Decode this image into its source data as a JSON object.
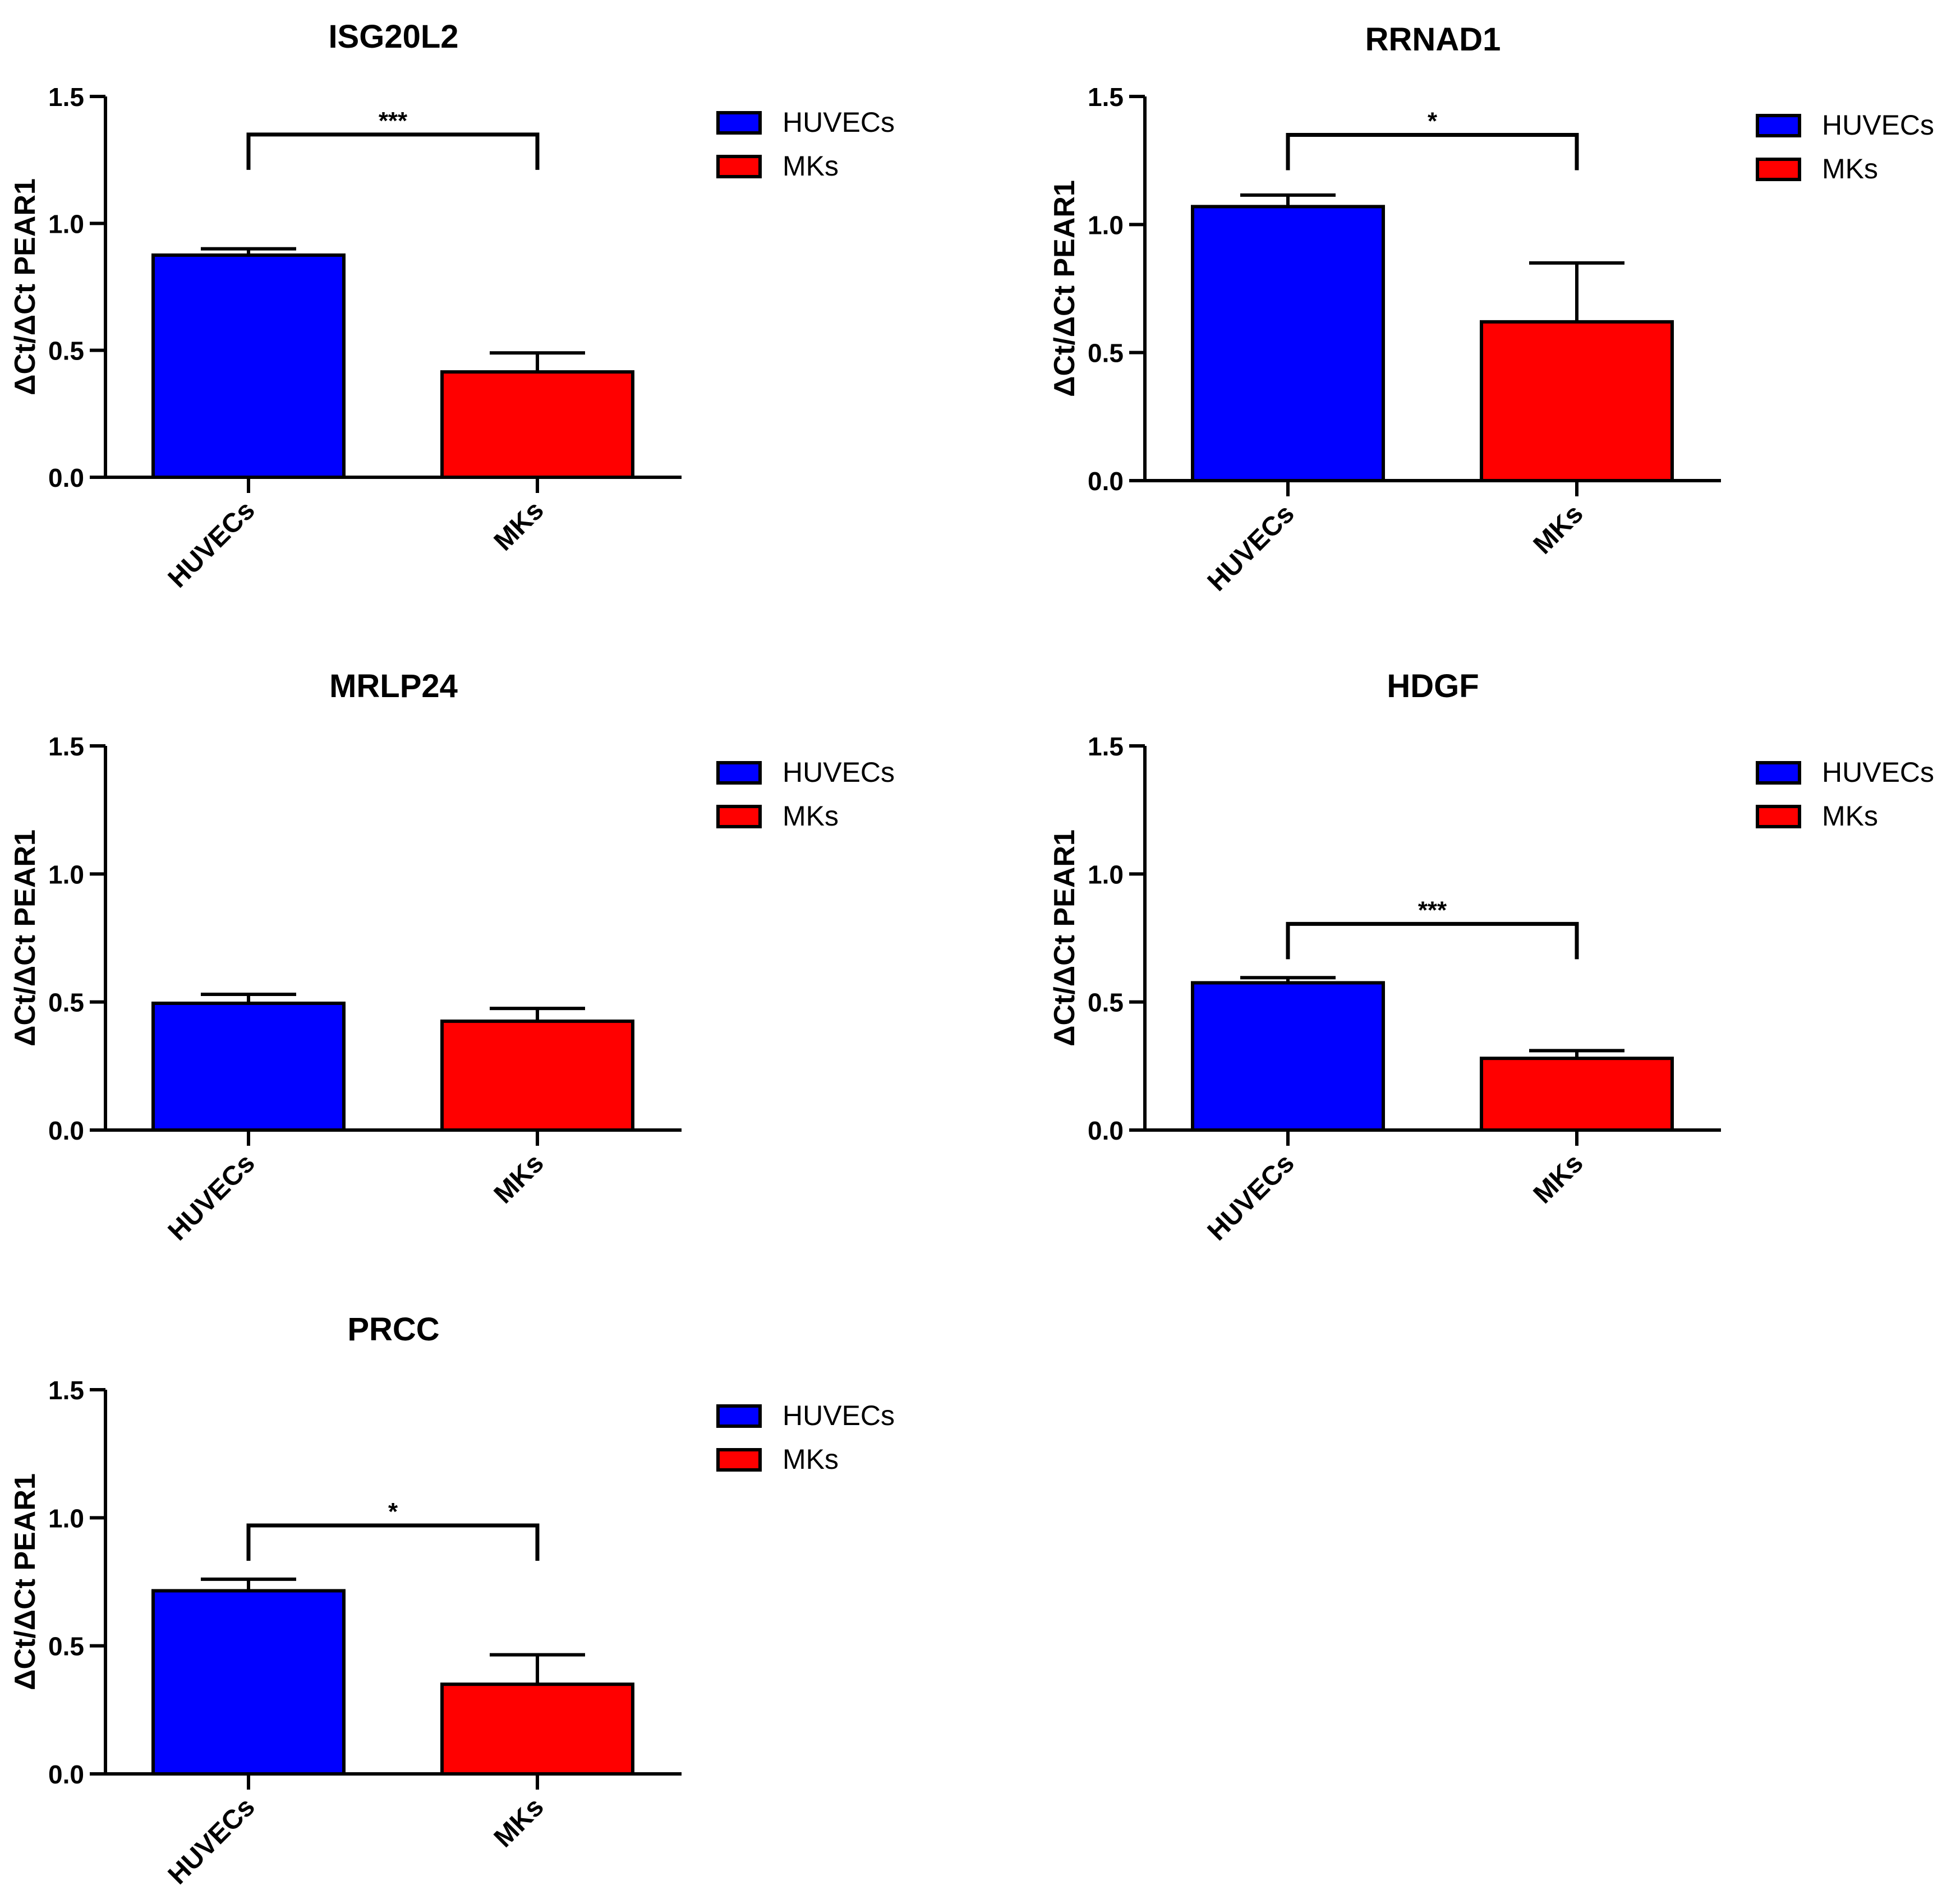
{
  "chart_data": [
    {
      "type": "bar",
      "title": "ISG20L2",
      "categories": [
        "HUVECs",
        "MKs"
      ],
      "values": [
        0.875,
        0.415
      ],
      "errors": [
        0.025,
        0.075
      ],
      "ylabel": "ΔCt/ΔCt PEAR1",
      "xlabel": "",
      "ylim": [
        0,
        1.5
      ],
      "yticks": [
        0.0,
        0.5,
        1.0,
        1.5
      ],
      "ytick_labels": [
        "0.0",
        "0.5",
        "1.0",
        "1.5"
      ],
      "significance": "***",
      "legend": [
        "HUVECs",
        "MKs"
      ],
      "legend_position": "right"
    },
    {
      "type": "bar",
      "title": "RRNAD1",
      "categories": [
        "HUVECs",
        "MKs"
      ],
      "values": [
        1.07,
        0.62
      ],
      "errors": [
        0.045,
        0.23
      ],
      "ylabel": "ΔCt/ΔCt PEAR1",
      "xlabel": "",
      "ylim": [
        0,
        1.5
      ],
      "yticks": [
        0.0,
        0.5,
        1.0,
        1.5
      ],
      "ytick_labels": [
        "0.0",
        "0.5",
        "1.0",
        "1.5"
      ],
      "significance": "*",
      "legend": [
        "HUVECs",
        "MKs"
      ],
      "legend_position": "right"
    },
    {
      "type": "bar",
      "title": "MRLP24",
      "categories": [
        "HUVECs",
        "MKs"
      ],
      "values": [
        0.495,
        0.425
      ],
      "errors": [
        0.035,
        0.05
      ],
      "ylabel": "ΔCt/ΔCt PEAR1",
      "xlabel": "",
      "ylim": [
        0,
        1.5
      ],
      "yticks": [
        0.0,
        0.5,
        1.0,
        1.5
      ],
      "ytick_labels": [
        "0.0",
        "0.5",
        "1.0",
        "1.5"
      ],
      "significance": "",
      "legend": [
        "HUVECs",
        "MKs"
      ],
      "legend_position": "right"
    },
    {
      "type": "bar",
      "title": "HDGF",
      "categories": [
        "HUVECs",
        "MKs"
      ],
      "values": [
        0.575,
        0.28
      ],
      "errors": [
        0.02,
        0.03
      ],
      "ylabel": "ΔCt/ΔCt PEAR1",
      "xlabel": "",
      "ylim": [
        0,
        1.5
      ],
      "yticks": [
        0.0,
        0.5,
        1.0,
        1.5
      ],
      "ytick_labels": [
        "0.0",
        "0.5",
        "1.0",
        "1.5"
      ],
      "significance": "***",
      "legend": [
        "HUVECs",
        "MKs"
      ],
      "legend_position": "right"
    },
    {
      "type": "bar",
      "title": "PRCC",
      "categories": [
        "HUVECs",
        "MKs"
      ],
      "values": [
        0.715,
        0.35
      ],
      "errors": [
        0.045,
        0.115
      ],
      "ylabel": "ΔCt/ΔCt PEAR1",
      "xlabel": "",
      "ylim": [
        0,
        1.5
      ],
      "yticks": [
        0.0,
        0.5,
        1.0,
        1.5
      ],
      "ytick_labels": [
        "0.0",
        "0.5",
        "1.0",
        "1.5"
      ],
      "significance": "*",
      "legend": [
        "HUVECs",
        "MKs"
      ],
      "legend_position": "right"
    }
  ],
  "colors": {
    "HUVECs": "#0000ff",
    "MKs": "#ff0000",
    "axis": "#000000"
  }
}
